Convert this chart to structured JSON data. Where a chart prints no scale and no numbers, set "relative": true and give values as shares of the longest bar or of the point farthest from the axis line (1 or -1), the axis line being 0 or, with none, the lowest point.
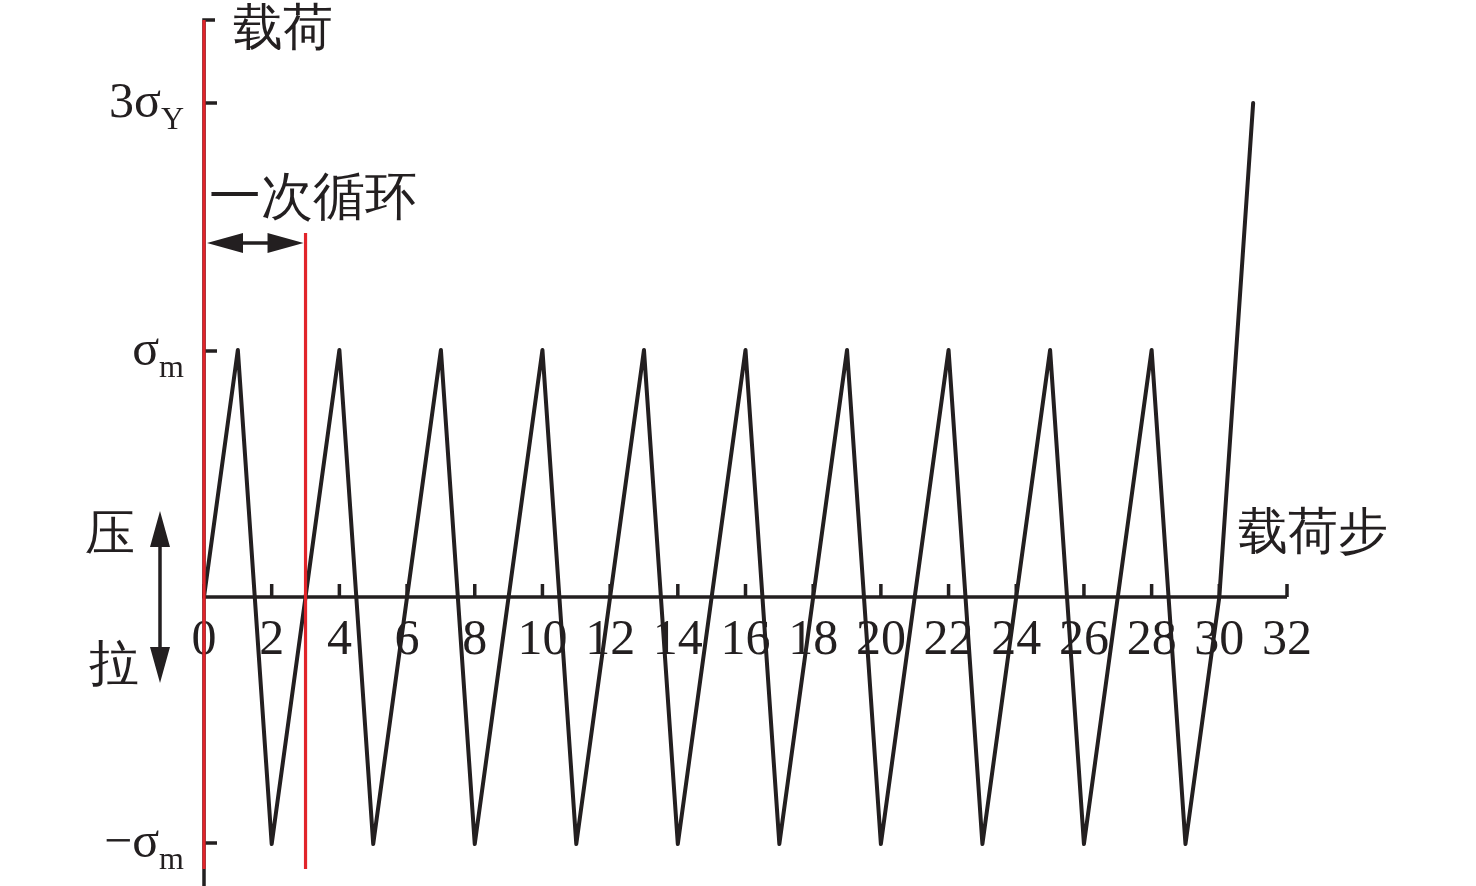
{
  "chart_data": {
    "type": "line",
    "relative": true,
    "xlabel": "载荷步",
    "ylabel": "载荷",
    "x": [
      0,
      1,
      2,
      3,
      4,
      5,
      6,
      7,
      8,
      9,
      10,
      11,
      12,
      13,
      14,
      15,
      16,
      17,
      18,
      19,
      20,
      21,
      22,
      23,
      24,
      25,
      26,
      27,
      28,
      29,
      30,
      31
    ],
    "values": [
      0,
      0.5,
      -0.5,
      0,
      0.5,
      -0.5,
      0,
      0.5,
      -0.5,
      0,
      0.5,
      -0.5,
      0,
      0.5,
      -0.5,
      0,
      0.5,
      -0.5,
      0,
      0.5,
      -0.5,
      0,
      0.5,
      -0.5,
      0,
      0.5,
      -0.5,
      0,
      0.5,
      -0.5,
      0,
      1
    ],
    "color": "#231f20",
    "line_style": "solid",
    "xlim": [
      0,
      32
    ],
    "xticks": [
      0,
      2,
      4,
      6,
      8,
      10,
      12,
      14,
      16,
      18,
      20,
      22,
      24,
      26,
      28,
      30,
      32
    ],
    "ref_lines": [
      {
        "axis": "x",
        "value": 0,
        "color": "#e1242a"
      },
      {
        "axis": "x",
        "value": 3,
        "color": "#e1242a"
      }
    ],
    "annotations": [
      "一次循环",
      "压",
      "拉",
      "3σ$_{Y}$",
      "σ$_{m}$",
      "−σ$_{m}$"
    ]
  }
}
